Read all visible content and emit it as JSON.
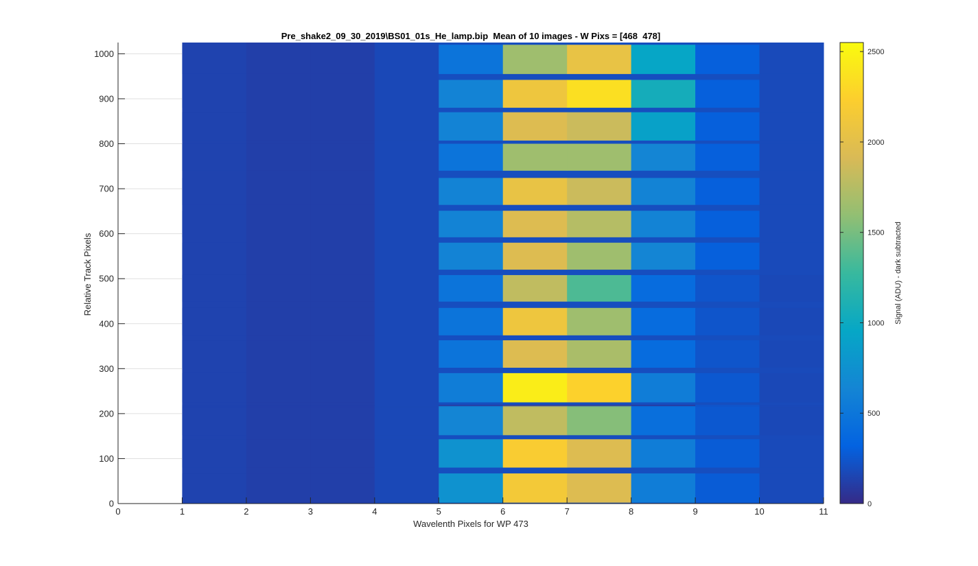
{
  "chart_data": {
    "type": "heatmap",
    "title": "Pre_shake2_09_30_2019\\BS01_01s_He_lamp.bip  Mean of 10 images - W Pixs = [468  478]",
    "xlabel": "Wavelenth Pixels for WP 473",
    "ylabel": "Relative Track Pixels",
    "colorbar_label": "Signal (ADU) - dark subtracted",
    "colormap": "parula",
    "xlim": [
      0,
      11
    ],
    "ylim": [
      0,
      1025
    ],
    "clim": [
      0,
      2550
    ],
    "grid": "horizontal",
    "x_ticks": [
      0,
      1,
      2,
      3,
      4,
      5,
      6,
      7,
      8,
      9,
      10,
      11
    ],
    "x_tick_labels": [
      "0",
      "1",
      "2",
      "3",
      "4",
      "5",
      "6",
      "7",
      "8",
      "9",
      "10",
      "11"
    ],
    "y_ticks": [
      0,
      100,
      200,
      300,
      400,
      500,
      600,
      700,
      800,
      900,
      1000
    ],
    "y_tick_labels": [
      "0",
      "100",
      "200",
      "300",
      "400",
      "500",
      "600",
      "700",
      "800",
      "900",
      "1000"
    ],
    "colorbar_ticks": [
      0,
      500,
      1000,
      1500,
      2000,
      2500
    ],
    "colorbar_tick_labels": [
      "0",
      "500",
      "1000",
      "1500",
      "2000",
      "2500"
    ],
    "columns": [
      {
        "label": "1",
        "x_from": 1,
        "x_to": 2
      },
      {
        "label": "2",
        "x_from": 2,
        "x_to": 3
      },
      {
        "label": "3",
        "x_from": 3,
        "x_to": 4
      },
      {
        "label": "4",
        "x_from": 4,
        "x_to": 5
      },
      {
        "label": "5",
        "x_from": 5,
        "x_to": 6
      },
      {
        "label": "6",
        "x_from": 6,
        "x_to": 7
      },
      {
        "label": "7",
        "x_from": 7,
        "x_to": 8
      },
      {
        "label": "8",
        "x_from": 8,
        "x_to": 9
      },
      {
        "label": "9",
        "x_from": 9,
        "x_to": 10
      },
      {
        "label": "10",
        "x_from": 10,
        "x_to": 11
      }
    ],
    "background_level": [
      140,
      120,
      120,
      170,
      200,
      200,
      200,
      200,
      200,
      180
    ],
    "tracks": [
      {
        "y_from": 2,
        "y_to": 67,
        "values": [
          140,
          120,
          120,
          170,
          760,
          2150,
          1950,
          560,
          280,
          180
        ]
      },
      {
        "y_from": 80,
        "y_to": 143,
        "values": [
          140,
          120,
          120,
          170,
          760,
          2200,
          1950,
          560,
          280,
          180
        ]
      },
      {
        "y_from": 217,
        "y_to": 217,
        "values": [
          140,
          120,
          120,
          170,
          640,
          1800,
          1550,
          430,
          260,
          170
        ]
      },
      {
        "y_from": 219,
        "y_to": 219,
        "values": [
          140,
          120,
          120,
          170,
          0,
          0,
          0,
          0,
          260,
          170
        ]
      },
      {
        "y_from": 152,
        "y_to": 215,
        "values": [
          140,
          120,
          120,
          170,
          640,
          1800,
          1550,
          430,
          260,
          170
        ]
      },
      {
        "y_from": 225,
        "y_to": 290,
        "values": [
          140,
          120,
          120,
          170,
          560,
          2450,
          2250,
          560,
          260,
          170
        ]
      },
      {
        "y_from": 302,
        "y_to": 363,
        "values": [
          140,
          120,
          120,
          170,
          480,
          1950,
          1700,
          400,
          240,
          170
        ]
      },
      {
        "y_from": 374,
        "y_to": 435,
        "values": [
          140,
          120,
          120,
          170,
          480,
          2100,
          1650,
          400,
          240,
          170
        ]
      },
      {
        "y_from": 449,
        "y_to": 508,
        "values": [
          140,
          120,
          120,
          170,
          480,
          1800,
          1350,
          400,
          240,
          170
        ]
      },
      {
        "y_from": 520,
        "y_to": 580,
        "values": [
          140,
          120,
          120,
          170,
          620,
          1950,
          1650,
          640,
          300,
          180
        ]
      },
      {
        "y_from": 592,
        "y_to": 651,
        "values": [
          140,
          120,
          120,
          170,
          620,
          1950,
          1750,
          620,
          300,
          180
        ]
      },
      {
        "y_from": 664,
        "y_to": 724,
        "values": [
          140,
          120,
          120,
          170,
          620,
          2050,
          1850,
          620,
          300,
          180
        ]
      },
      {
        "y_from": 740,
        "y_to": 800,
        "values": [
          140,
          120,
          120,
          170,
          480,
          1650,
          1650,
          640,
          300,
          180
        ]
      },
      {
        "y_from": 807,
        "y_to": 870,
        "values": [
          140,
          120,
          120,
          170,
          620,
          1950,
          1850,
          900,
          300,
          180
        ]
      },
      {
        "y_from": 880,
        "y_to": 942,
        "values": [
          140,
          120,
          120,
          170,
          620,
          2100,
          2350,
          1050,
          300,
          180
        ]
      },
      {
        "y_from": 955,
        "y_to": 1020,
        "values": [
          140,
          120,
          120,
          170,
          480,
          1650,
          2050,
          950,
          300,
          180
        ]
      }
    ]
  }
}
